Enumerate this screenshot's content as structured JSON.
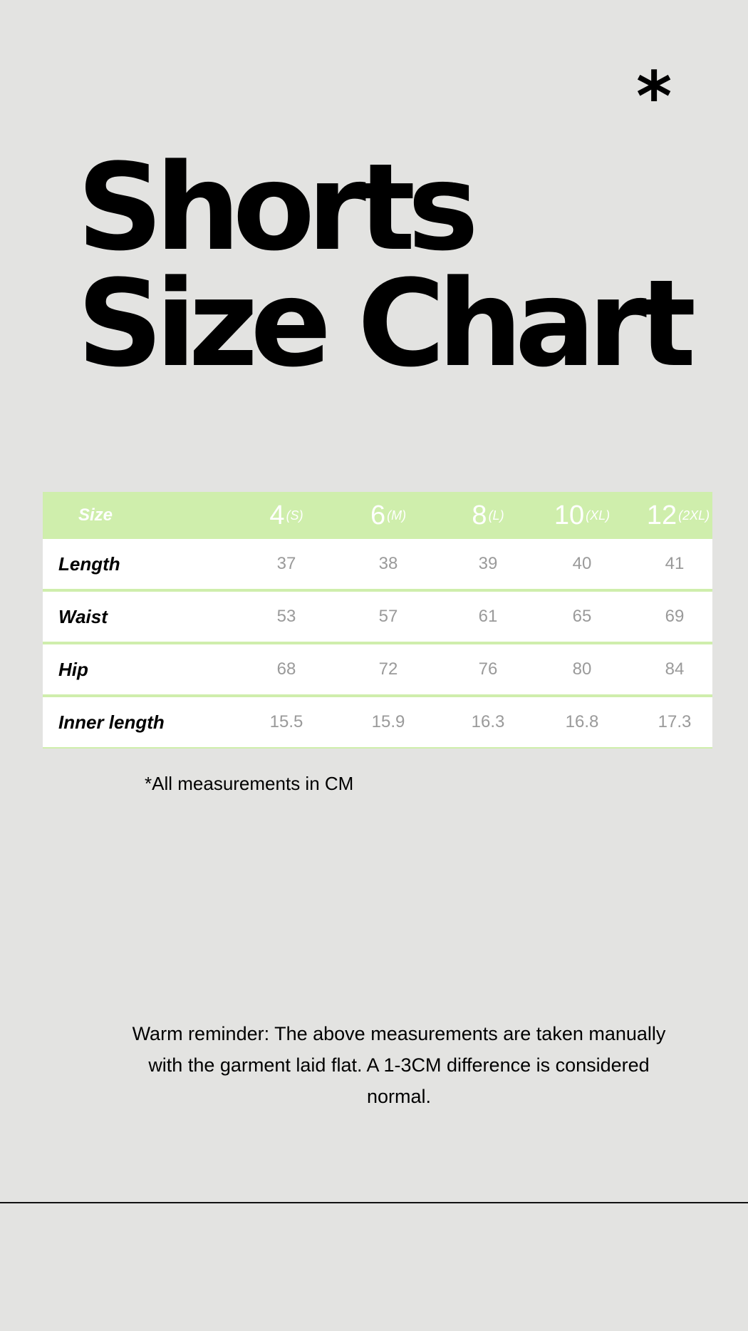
{
  "decor": {
    "asterisk": "*"
  },
  "title": {
    "line1": "Shorts",
    "line2": "Size Chart"
  },
  "table": {
    "header_label": "Size",
    "sizes": [
      {
        "num": "4",
        "tag": "(S)"
      },
      {
        "num": "6",
        "tag": "(M)"
      },
      {
        "num": "8",
        "tag": "(L)"
      },
      {
        "num": "10",
        "tag": "(XL)"
      },
      {
        "num": "12",
        "tag": "(2XL)"
      }
    ],
    "rows": [
      {
        "label": "Length",
        "values": [
          "37",
          "38",
          "39",
          "40",
          "41"
        ]
      },
      {
        "label": "Waist",
        "values": [
          "53",
          "57",
          "61",
          "65",
          "69"
        ]
      },
      {
        "label": "Hip",
        "values": [
          "68",
          "72",
          "76",
          "80",
          "84"
        ]
      },
      {
        "label": "Inner length",
        "values": [
          "15.5",
          "15.9",
          "16.3",
          "16.8",
          "17.3"
        ]
      }
    ]
  },
  "note": "*All measurements in CM",
  "reminder": "Warm reminder: The above measurements are taken manually with the garment laid flat. A 1-3CM difference is considered normal.",
  "colors": {
    "background": "#e3e3e1",
    "header": "#cfeeac",
    "value_text": "#9a9a9a"
  }
}
